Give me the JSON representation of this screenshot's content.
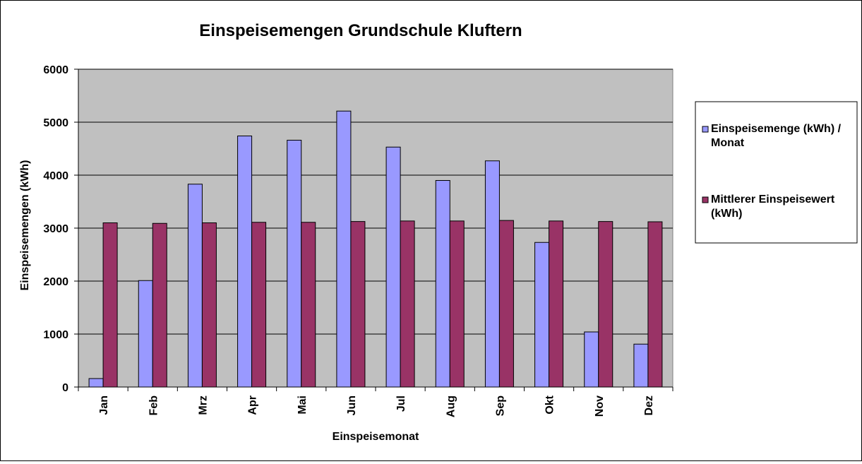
{
  "chart_data": {
    "type": "bar",
    "title": "Einspeisemengen Grundschule Kluftern",
    "xlabel": "Einspeisemonat",
    "ylabel": "Einspeisemengen (kWh)",
    "ylim": [
      0,
      6000
    ],
    "yticks": [
      0,
      1000,
      2000,
      3000,
      4000,
      5000,
      6000
    ],
    "grid": true,
    "legend_position": "right",
    "categories": [
      "Jan",
      "Feb",
      "Mrz",
      "Apr",
      "Mai",
      "Jun",
      "Jul",
      "Aug",
      "Sep",
      "Okt",
      "Nov",
      "Dez"
    ],
    "series": [
      {
        "name": "Einspeisemenge (kWh) / Monat",
        "legend_lines": [
          "Einspeisemenge (kWh) /",
          "Monat"
        ],
        "color": "#9999ff",
        "values": [
          160,
          2010,
          3830,
          4740,
          4660,
          5210,
          4530,
          3900,
          4270,
          2730,
          1040,
          810
        ]
      },
      {
        "name": "Mittlerer Einspeisewert (kWh)",
        "legend_lines": [
          "Mittlerer Einspeisewert",
          "(kWh)"
        ],
        "color": "#993366",
        "values": [
          3100,
          3090,
          3100,
          3110,
          3110,
          3125,
          3135,
          3135,
          3145,
          3135,
          3125,
          3120
        ]
      }
    ],
    "plot_background": "#c0c0c0"
  }
}
